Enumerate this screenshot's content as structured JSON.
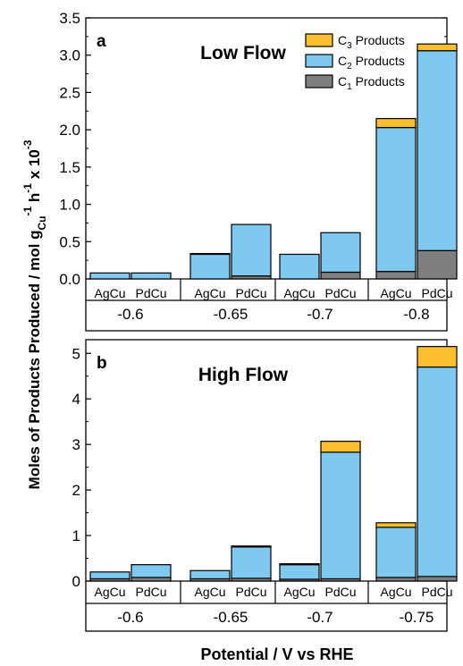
{
  "figure": {
    "ylabel_main": "Moles of Products Produced / mol g",
    "ylabel_sub_cu": "Cu",
    "ylabel_sup_minus1": "-1",
    "ylabel_mid": " h",
    "ylabel_sup_minus1_b": "-1",
    "ylabel_x10": " x 10",
    "ylabel_sup_minus3": "-3",
    "xlabel": "Potential / V vs RHE"
  },
  "legend": {
    "items": [
      {
        "prefix": "C",
        "sub": "3",
        "suffix": " Products",
        "color": "#FDBF2D"
      },
      {
        "prefix": "C",
        "sub": "2",
        "suffix": " Products",
        "color": "#7FC8F0"
      },
      {
        "prefix": "C",
        "sub": "1",
        "suffix": " Products",
        "color": "#7F7F7F"
      }
    ]
  },
  "chart_data": [
    {
      "type": "bar",
      "panel_label": "a",
      "title": "Low Flow",
      "stacked": true,
      "ylim": [
        0,
        3.5
      ],
      "yticks": [
        "0.0",
        "0.5",
        "1.0",
        "1.5",
        "2.0",
        "2.5",
        "3.0",
        "3.5"
      ],
      "groups": [
        "-0.6",
        "-0.65",
        "-0.7",
        "-0.8"
      ],
      "categories": [
        "AgCu",
        "PdCu"
      ],
      "series": [
        {
          "name": "C1 Products",
          "color": "#7F7F7F",
          "values": [
            [
              0.0,
              0.0
            ],
            [
              0.0,
              0.04
            ],
            [
              0.0,
              0.09
            ],
            [
              0.1,
              0.38
            ]
          ]
        },
        {
          "name": "C2 Products",
          "color": "#7FC8F0",
          "values": [
            [
              0.08,
              0.08
            ],
            [
              0.33,
              0.69
            ],
            [
              0.33,
              0.53
            ],
            [
              1.93,
              2.68
            ]
          ]
        },
        {
          "name": "C3 Products",
          "color": "#FDBF2D",
          "values": [
            [
              0.0,
              0.0
            ],
            [
              0.01,
              0.0
            ],
            [
              0.0,
              0.0
            ],
            [
              0.12,
              0.09
            ]
          ]
        }
      ],
      "legend": "top-right"
    },
    {
      "type": "bar",
      "panel_label": "b",
      "title": "High Flow",
      "stacked": true,
      "ylim": [
        0,
        5.3
      ],
      "yticks": [
        "0",
        "1",
        "2",
        "3",
        "4",
        "5"
      ],
      "groups": [
        "-0.6",
        "-0.65",
        "-0.7",
        "-0.75"
      ],
      "categories": [
        "AgCu",
        "PdCu"
      ],
      "series": [
        {
          "name": "C1 Products",
          "color": "#7F7F7F",
          "values": [
            [
              0.05,
              0.08
            ],
            [
              0.05,
              0.06
            ],
            [
              0.04,
              0.05
            ],
            [
              0.08,
              0.1
            ]
          ]
        },
        {
          "name": "C2 Products",
          "color": "#7FC8F0",
          "values": [
            [
              0.15,
              0.28
            ],
            [
              0.18,
              0.69
            ],
            [
              0.32,
              2.78
            ],
            [
              1.1,
              4.6
            ]
          ]
        },
        {
          "name": "C3 Products",
          "color": "#FDBF2D",
          "values": [
            [
              0.0,
              0.0
            ],
            [
              0.0,
              0.02
            ],
            [
              0.02,
              0.24
            ],
            [
              0.1,
              0.45
            ]
          ]
        }
      ]
    }
  ]
}
